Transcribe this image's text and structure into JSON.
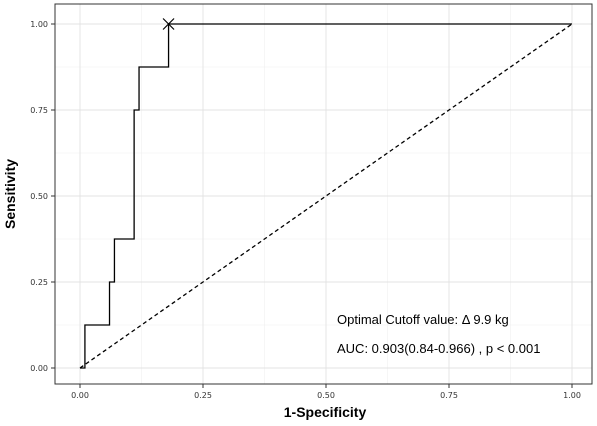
{
  "chart_data": {
    "type": "line",
    "xlabel": "1-Specificity",
    "ylabel": "Sensitivity",
    "xlim": [
      0,
      1
    ],
    "ylim": [
      0,
      1
    ],
    "x_ticks": [
      0,
      0.25,
      0.5,
      0.75,
      1
    ],
    "x_tick_labels": [
      "0.00",
      "0.25",
      "0.50",
      "0.75",
      "1.00"
    ],
    "y_ticks": [
      0,
      0.25,
      0.5,
      0.75,
      1
    ],
    "y_tick_labels": [
      "0.00",
      "0.25",
      "0.50",
      "0.75",
      "1.00"
    ],
    "grid": true,
    "series": [
      {
        "style": "solid",
        "x": [
          0,
          0.01,
          0.01,
          0.06,
          0.06,
          0.07,
          0.07,
          0.11,
          0.11,
          0.12,
          0.12,
          0.18,
          0.18,
          1.0
        ],
        "y": [
          0,
          0,
          0.125,
          0.125,
          0.25,
          0.25,
          0.375,
          0.375,
          0.75,
          0.75,
          0.875,
          0.875,
          1.0,
          1.0
        ]
      },
      {
        "style": "dashed",
        "x": [
          0,
          1
        ],
        "y": [
          0,
          1
        ]
      }
    ],
    "optimal_point": {
      "x": 0.18,
      "y": 1.0,
      "marker": "x"
    },
    "annotations": [
      "Optimal Cutoff value:  Δ 9.9 kg",
      "AUC:  0.903(0.84-0.966) , p < 0.001"
    ]
  }
}
